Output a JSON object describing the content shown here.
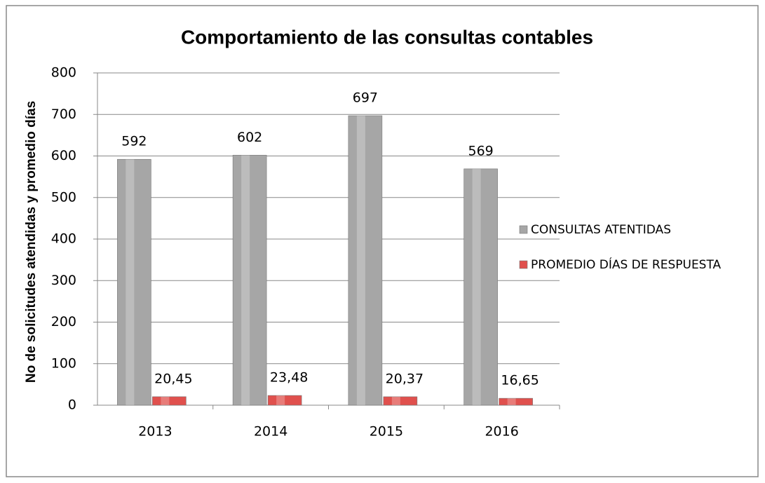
{
  "chart_data": {
    "type": "bar",
    "title": "Comportamiento de las consultas contables",
    "y_label": "No de solicitudes atendidas y promedio días",
    "categories": [
      "2013",
      "2014",
      "2015",
      "2016"
    ],
    "series": [
      {
        "name": "CONSULTAS ATENTIDAS",
        "color": "#a6a6a6",
        "values": [
          592,
          602,
          697,
          569
        ]
      },
      {
        "name": "PROMEDIO DÍAS DE RESPUESTA",
        "color": "#e0504d",
        "values": [
          20.45,
          23.48,
          20.37,
          16.65
        ],
        "value_labels": [
          "20,45",
          "23,48",
          "20,37",
          "16,65"
        ]
      }
    ],
    "ylim": [
      0,
      800
    ],
    "yticks": [
      0,
      100,
      200,
      300,
      400,
      500,
      600,
      700,
      800
    ],
    "grid": true,
    "legend": "right"
  }
}
